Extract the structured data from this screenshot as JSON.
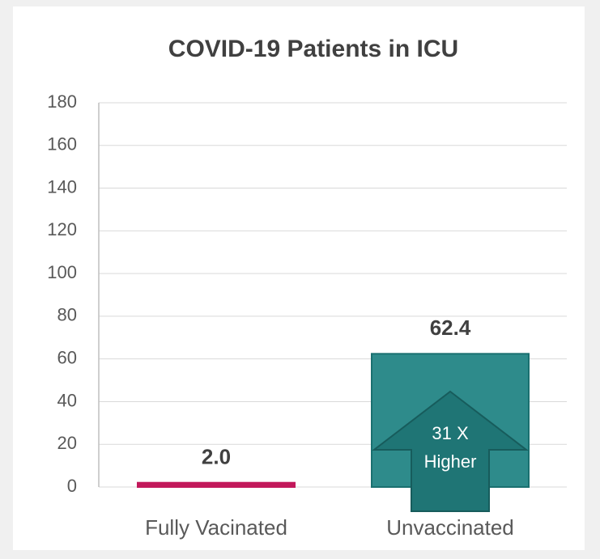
{
  "chart_data": {
    "type": "bar",
    "title": "COVID-19 Patients in ICU",
    "categories": [
      "Fully Vacinated",
      "Unvaccinated"
    ],
    "values": [
      2,
      62.4
    ],
    "value_labels": [
      "2.0",
      "62.4"
    ],
    "colors": [
      "#c2185b",
      "#2e8b8b"
    ],
    "ylim": [
      0,
      180
    ],
    "yticks": [
      0,
      20,
      40,
      60,
      80,
      100,
      120,
      140,
      160,
      180
    ],
    "grid": true,
    "annotation": [
      "31 X",
      "Higher"
    ]
  }
}
